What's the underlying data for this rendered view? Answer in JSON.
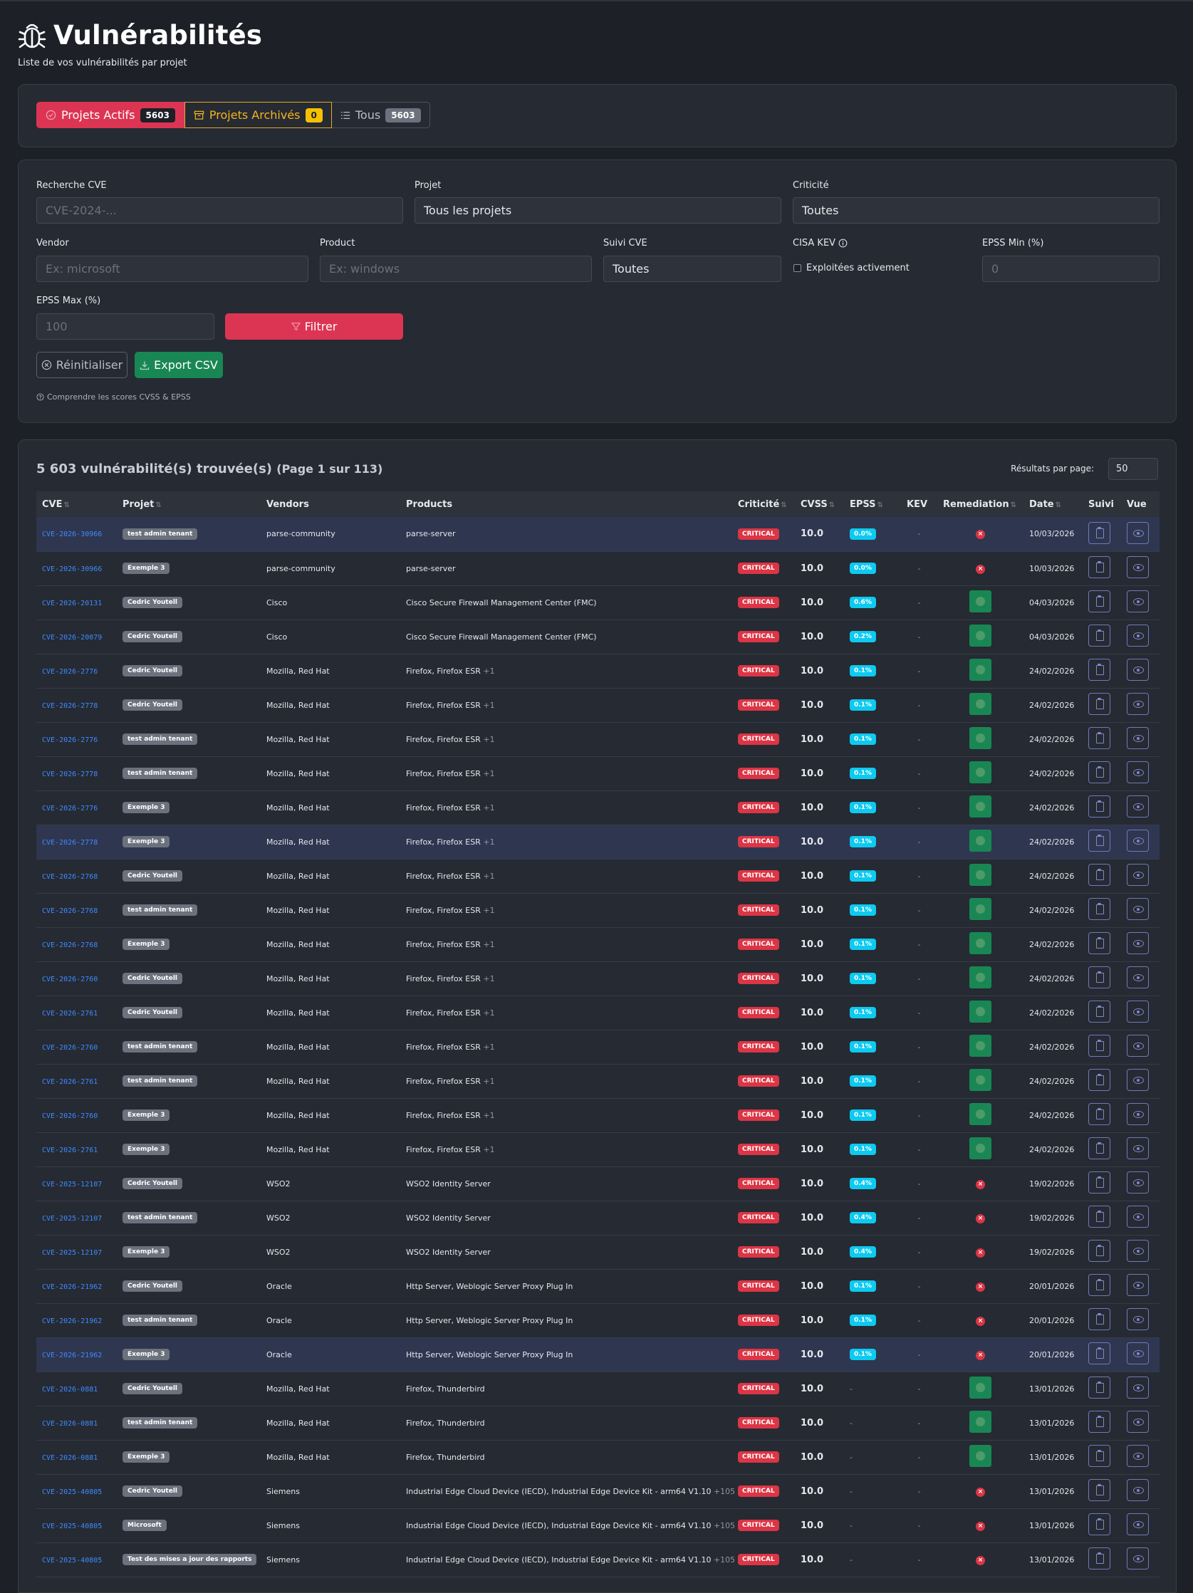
{
  "header": {
    "title": "Vulnérabilités",
    "subtitle": "Liste de vos vulnérabilités par projet"
  },
  "tabs": [
    {
      "label": "Projets Actifs",
      "count": "5603",
      "icon": "check-circle-icon"
    },
    {
      "label": "Projets Archivés",
      "count": "0",
      "icon": "archive-icon"
    },
    {
      "label": "Tous",
      "count": "5603",
      "icon": "list-icon"
    }
  ],
  "filters": {
    "cve_label": "Recherche CVE",
    "cve_placeholder": "CVE-2024-...",
    "project_label": "Projet",
    "project_value": "Tous les projets",
    "criticity_label": "Criticité",
    "criticity_value": "Toutes",
    "vendor_label": "Vendor",
    "vendor_placeholder": "Ex: microsoft",
    "product_label": "Product",
    "product_placeholder": "Ex: windows",
    "suivi_label": "Suivi CVE",
    "suivi_value": "Toutes",
    "kev_label": "CISA KEV",
    "kev_checkbox_label": "Exploitées activement",
    "epss_min_label": "EPSS Min (%)",
    "epss_min_placeholder": "0",
    "epss_max_label": "EPSS Max (%)",
    "epss_max_placeholder": "100",
    "filter_button": "Filtrer",
    "reset_button": "Réinitialiser",
    "export_button": "Export CSV",
    "help_link": "Comprendre les scores CVSS & EPSS"
  },
  "results": {
    "title": "5 603 vulnérabilité(s) trouvée(s)",
    "page_info": "(Page 1 sur 113)",
    "per_page_label": "Résultats par page:",
    "per_page_value": "50"
  },
  "columns": [
    "CVE",
    "Projet",
    "Vendors",
    "Products",
    "Criticité",
    "CVSS",
    "EPSS",
    "KEV",
    "Remediation",
    "Date",
    "Suivi",
    "Vue"
  ],
  "rows": [
    {
      "cve": "CVE-2026-30966",
      "project": "test admin tenant",
      "vendors": "parse-community",
      "products": "parse-server",
      "extra": "",
      "criticity": "CRITICAL",
      "cvss": "10.0",
      "epss": "0.0%",
      "kev": "-",
      "remediation": "no",
      "date": "10/03/2026",
      "highlight": true
    },
    {
      "cve": "CVE-2026-30966",
      "project": "Exemple 3",
      "vendors": "parse-community",
      "products": "parse-server",
      "extra": "",
      "criticity": "CRITICAL",
      "cvss": "10.0",
      "epss": "0.0%",
      "kev": "-",
      "remediation": "no",
      "date": "10/03/2026",
      "highlight": false
    },
    {
      "cve": "CVE-2026-20131",
      "project": "Cedric Youtell",
      "vendors": "Cisco",
      "products": "Cisco Secure Firewall Management Center (FMC)",
      "extra": "",
      "criticity": "CRITICAL",
      "cvss": "10.0",
      "epss": "0.6%",
      "kev": "-",
      "remediation": "yes",
      "date": "04/03/2026",
      "highlight": false
    },
    {
      "cve": "CVE-2026-20079",
      "project": "Cedric Youtell",
      "vendors": "Cisco",
      "products": "Cisco Secure Firewall Management Center (FMC)",
      "extra": "",
      "criticity": "CRITICAL",
      "cvss": "10.0",
      "epss": "0.2%",
      "kev": "-",
      "remediation": "yes",
      "date": "04/03/2026",
      "highlight": false
    },
    {
      "cve": "CVE-2026-2776",
      "project": "Cedric Youtell",
      "vendors": "Mozilla, Red Hat",
      "products": "Firefox, Firefox ESR",
      "extra": "+1",
      "criticity": "CRITICAL",
      "cvss": "10.0",
      "epss": "0.1%",
      "kev": "-",
      "remediation": "yes",
      "date": "24/02/2026",
      "highlight": false
    },
    {
      "cve": "CVE-2026-2778",
      "project": "Cedric Youtell",
      "vendors": "Mozilla, Red Hat",
      "products": "Firefox, Firefox ESR",
      "extra": "+1",
      "criticity": "CRITICAL",
      "cvss": "10.0",
      "epss": "0.1%",
      "kev": "-",
      "remediation": "yes",
      "date": "24/02/2026",
      "highlight": false
    },
    {
      "cve": "CVE-2026-2776",
      "project": "test admin tenant",
      "vendors": "Mozilla, Red Hat",
      "products": "Firefox, Firefox ESR",
      "extra": "+1",
      "criticity": "CRITICAL",
      "cvss": "10.0",
      "epss": "0.1%",
      "kev": "-",
      "remediation": "yes",
      "date": "24/02/2026",
      "highlight": false
    },
    {
      "cve": "CVE-2026-2778",
      "project": "test admin tenant",
      "vendors": "Mozilla, Red Hat",
      "products": "Firefox, Firefox ESR",
      "extra": "+1",
      "criticity": "CRITICAL",
      "cvss": "10.0",
      "epss": "0.1%",
      "kev": "-",
      "remediation": "yes",
      "date": "24/02/2026",
      "highlight": false
    },
    {
      "cve": "CVE-2026-2776",
      "project": "Exemple 3",
      "vendors": "Mozilla, Red Hat",
      "products": "Firefox, Firefox ESR",
      "extra": "+1",
      "criticity": "CRITICAL",
      "cvss": "10.0",
      "epss": "0.1%",
      "kev": "-",
      "remediation": "yes",
      "date": "24/02/2026",
      "highlight": false
    },
    {
      "cve": "CVE-2026-2778",
      "project": "Exemple 3",
      "vendors": "Mozilla, Red Hat",
      "products": "Firefox, Firefox ESR",
      "extra": "+1",
      "criticity": "CRITICAL",
      "cvss": "10.0",
      "epss": "0.1%",
      "kev": "-",
      "remediation": "yes",
      "date": "24/02/2026",
      "highlight": true
    },
    {
      "cve": "CVE-2026-2768",
      "project": "Cedric Youtell",
      "vendors": "Mozilla, Red Hat",
      "products": "Firefox, Firefox ESR",
      "extra": "+1",
      "criticity": "CRITICAL",
      "cvss": "10.0",
      "epss": "0.1%",
      "kev": "-",
      "remediation": "yes",
      "date": "24/02/2026",
      "highlight": false
    },
    {
      "cve": "CVE-2026-2768",
      "project": "test admin tenant",
      "vendors": "Mozilla, Red Hat",
      "products": "Firefox, Firefox ESR",
      "extra": "+1",
      "criticity": "CRITICAL",
      "cvss": "10.0",
      "epss": "0.1%",
      "kev": "-",
      "remediation": "yes",
      "date": "24/02/2026",
      "highlight": false
    },
    {
      "cve": "CVE-2026-2768",
      "project": "Exemple 3",
      "vendors": "Mozilla, Red Hat",
      "products": "Firefox, Firefox ESR",
      "extra": "+1",
      "criticity": "CRITICAL",
      "cvss": "10.0",
      "epss": "0.1%",
      "kev": "-",
      "remediation": "yes",
      "date": "24/02/2026",
      "highlight": false
    },
    {
      "cve": "CVE-2026-2760",
      "project": "Cedric Youtell",
      "vendors": "Mozilla, Red Hat",
      "products": "Firefox, Firefox ESR",
      "extra": "+1",
      "criticity": "CRITICAL",
      "cvss": "10.0",
      "epss": "0.1%",
      "kev": "-",
      "remediation": "yes",
      "date": "24/02/2026",
      "highlight": false
    },
    {
      "cve": "CVE-2026-2761",
      "project": "Cedric Youtell",
      "vendors": "Mozilla, Red Hat",
      "products": "Firefox, Firefox ESR",
      "extra": "+1",
      "criticity": "CRITICAL",
      "cvss": "10.0",
      "epss": "0.1%",
      "kev": "-",
      "remediation": "yes",
      "date": "24/02/2026",
      "highlight": false
    },
    {
      "cve": "CVE-2026-2760",
      "project": "test admin tenant",
      "vendors": "Mozilla, Red Hat",
      "products": "Firefox, Firefox ESR",
      "extra": "+1",
      "criticity": "CRITICAL",
      "cvss": "10.0",
      "epss": "0.1%",
      "kev": "-",
      "remediation": "yes",
      "date": "24/02/2026",
      "highlight": false
    },
    {
      "cve": "CVE-2026-2761",
      "project": "test admin tenant",
      "vendors": "Mozilla, Red Hat",
      "products": "Firefox, Firefox ESR",
      "extra": "+1",
      "criticity": "CRITICAL",
      "cvss": "10.0",
      "epss": "0.1%",
      "kev": "-",
      "remediation": "yes",
      "date": "24/02/2026",
      "highlight": false
    },
    {
      "cve": "CVE-2026-2760",
      "project": "Exemple 3",
      "vendors": "Mozilla, Red Hat",
      "products": "Firefox, Firefox ESR",
      "extra": "+1",
      "criticity": "CRITICAL",
      "cvss": "10.0",
      "epss": "0.1%",
      "kev": "-",
      "remediation": "yes",
      "date": "24/02/2026",
      "highlight": false
    },
    {
      "cve": "CVE-2026-2761",
      "project": "Exemple 3",
      "vendors": "Mozilla, Red Hat",
      "products": "Firefox, Firefox ESR",
      "extra": "+1",
      "criticity": "CRITICAL",
      "cvss": "10.0",
      "epss": "0.1%",
      "kev": "-",
      "remediation": "yes",
      "date": "24/02/2026",
      "highlight": false
    },
    {
      "cve": "CVE-2025-12107",
      "project": "Cedric Youtell",
      "vendors": "WSO2",
      "products": "WSO2 Identity Server",
      "extra": "",
      "criticity": "CRITICAL",
      "cvss": "10.0",
      "epss": "0.4%",
      "kev": "-",
      "remediation": "no",
      "date": "19/02/2026",
      "highlight": false
    },
    {
      "cve": "CVE-2025-12107",
      "project": "test admin tenant",
      "vendors": "WSO2",
      "products": "WSO2 Identity Server",
      "extra": "",
      "criticity": "CRITICAL",
      "cvss": "10.0",
      "epss": "0.4%",
      "kev": "-",
      "remediation": "no",
      "date": "19/02/2026",
      "highlight": false
    },
    {
      "cve": "CVE-2025-12107",
      "project": "Exemple 3",
      "vendors": "WSO2",
      "products": "WSO2 Identity Server",
      "extra": "",
      "criticity": "CRITICAL",
      "cvss": "10.0",
      "epss": "0.4%",
      "kev": "-",
      "remediation": "no",
      "date": "19/02/2026",
      "highlight": false
    },
    {
      "cve": "CVE-2026-21962",
      "project": "Cedric Youtell",
      "vendors": "Oracle",
      "products": "Http Server, Weblogic Server Proxy Plug In",
      "extra": "",
      "criticity": "CRITICAL",
      "cvss": "10.0",
      "epss": "0.1%",
      "kev": "-",
      "remediation": "no",
      "date": "20/01/2026",
      "highlight": false
    },
    {
      "cve": "CVE-2026-21962",
      "project": "test admin tenant",
      "vendors": "Oracle",
      "products": "Http Server, Weblogic Server Proxy Plug In",
      "extra": "",
      "criticity": "CRITICAL",
      "cvss": "10.0",
      "epss": "0.1%",
      "kev": "-",
      "remediation": "no",
      "date": "20/01/2026",
      "highlight": false
    },
    {
      "cve": "CVE-2026-21962",
      "project": "Exemple 3",
      "vendors": "Oracle",
      "products": "Http Server, Weblogic Server Proxy Plug In",
      "extra": "",
      "criticity": "CRITICAL",
      "cvss": "10.0",
      "epss": "0.1%",
      "kev": "-",
      "remediation": "no",
      "date": "20/01/2026",
      "highlight": true
    },
    {
      "cve": "CVE-2026-0881",
      "project": "Cedric Youtell",
      "vendors": "Mozilla, Red Hat",
      "products": "Firefox, Thunderbird",
      "extra": "",
      "criticity": "CRITICAL",
      "cvss": "10.0",
      "epss": "-",
      "kev": "-",
      "remediation": "yes",
      "date": "13/01/2026",
      "highlight": false
    },
    {
      "cve": "CVE-2026-0881",
      "project": "test admin tenant",
      "vendors": "Mozilla, Red Hat",
      "products": "Firefox, Thunderbird",
      "extra": "",
      "criticity": "CRITICAL",
      "cvss": "10.0",
      "epss": "-",
      "kev": "-",
      "remediation": "yes",
      "date": "13/01/2026",
      "highlight": false
    },
    {
      "cve": "CVE-2026-0881",
      "project": "Exemple 3",
      "vendors": "Mozilla, Red Hat",
      "products": "Firefox, Thunderbird",
      "extra": "",
      "criticity": "CRITICAL",
      "cvss": "10.0",
      "epss": "-",
      "kev": "-",
      "remediation": "yes",
      "date": "13/01/2026",
      "highlight": false
    },
    {
      "cve": "CVE-2025-40805",
      "project": "Cedric Youtell",
      "vendors": "Siemens",
      "products": "Industrial Edge Cloud Device (IECD), Industrial Edge Device Kit - arm64 V1.10",
      "extra": "+105",
      "criticity": "CRITICAL",
      "cvss": "10.0",
      "epss": "-",
      "kev": "-",
      "remediation": "no",
      "date": "13/01/2026",
      "highlight": false
    },
    {
      "cve": "CVE-2025-40805",
      "project": "Microsoft",
      "vendors": "Siemens",
      "products": "Industrial Edge Cloud Device (IECD), Industrial Edge Device Kit - arm64 V1.10",
      "extra": "+105",
      "criticity": "CRITICAL",
      "cvss": "10.0",
      "epss": "-",
      "kev": "-",
      "remediation": "no",
      "date": "13/01/2026",
      "highlight": false
    },
    {
      "cve": "CVE-2025-40805",
      "project": "Test des mises a jour des rapports",
      "vendors": "Siemens",
      "products": "Industrial Edge Cloud Device (IECD), Industrial Edge Device Kit - arm64 V1.10",
      "extra": "+105",
      "criticity": "CRITICAL",
      "cvss": "10.0",
      "epss": "-",
      "kev": "-",
      "remediation": "no",
      "date": "13/01/2026",
      "highlight": false
    }
  ]
}
